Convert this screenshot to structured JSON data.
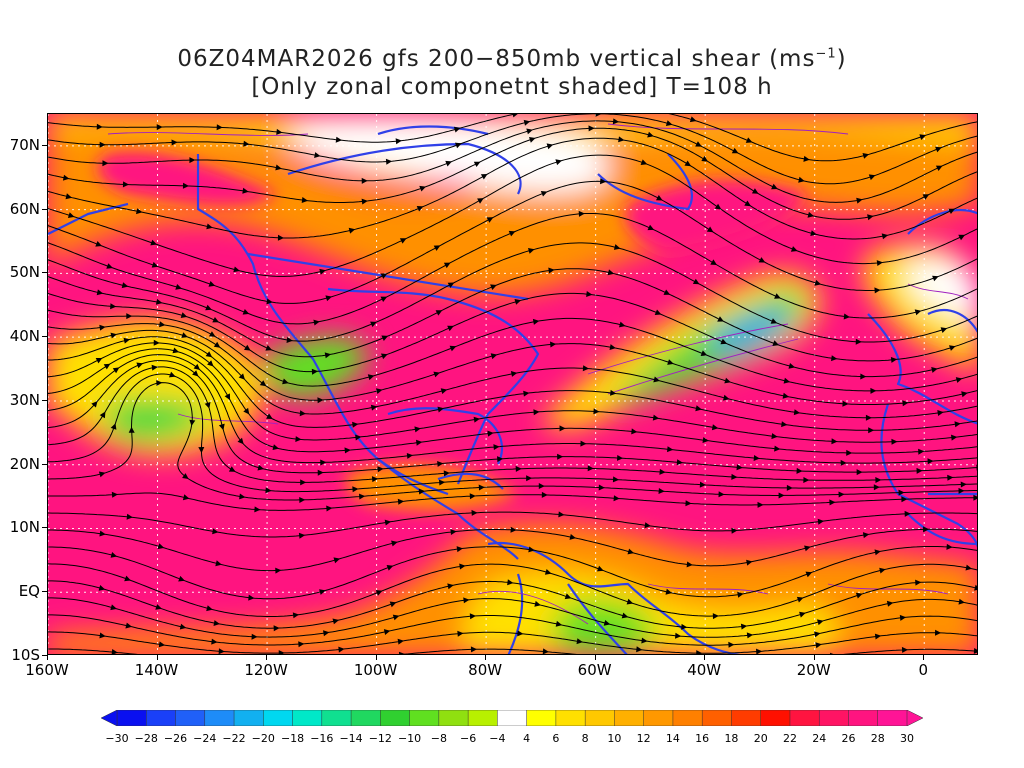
{
  "title_line1_main": "06Z04MAR2026 gfs 200−850mb vertical shear (ms",
  "title_line1_sup": "−1",
  "title_line1_end": ")",
  "title_line2": "[Only zonal componetnt shaded] T=108 h",
  "lat_labels": [
    {
      "text": "70N",
      "lat": 70
    },
    {
      "text": "60N",
      "lat": 60
    },
    {
      "text": "50N",
      "lat": 50
    },
    {
      "text": "40N",
      "lat": 40
    },
    {
      "text": "30N",
      "lat": 30
    },
    {
      "text": "20N",
      "lat": 20
    },
    {
      "text": "10N",
      "lat": 10
    },
    {
      "text": "EQ",
      "lat": 0
    },
    {
      "text": "10S",
      "lat": -10
    }
  ],
  "lon_labels": [
    {
      "text": "160W",
      "lon": -160
    },
    {
      "text": "140W",
      "lon": -140
    },
    {
      "text": "120W",
      "lon": -120
    },
    {
      "text": "100W",
      "lon": -100
    },
    {
      "text": "80W",
      "lon": -80
    },
    {
      "text": "60W",
      "lon": -60
    },
    {
      "text": "40W",
      "lon": -40
    },
    {
      "text": "20W",
      "lon": -20
    },
    {
      "text": "0",
      "lon": 0
    }
  ],
  "map_extent": {
    "lon_min": -160,
    "lon_max": 10,
    "lat_min": -10,
    "lat_max": 75
  },
  "colorbar_labels": [
    "−30",
    "−28",
    "−26",
    "−24",
    "−22",
    "−20",
    "−18",
    "−16",
    "−14",
    "−12",
    "−10",
    "−8",
    "−6",
    "−4",
    "4",
    "6",
    "8",
    "10",
    "12",
    "14",
    "16",
    "18",
    "20",
    "22",
    "24",
    "26",
    "28",
    "30"
  ],
  "colorbar_colors": [
    "#0a10f0",
    "#1a40f8",
    "#2060f8",
    "#1e8cf8",
    "#12b0f0",
    "#00d8f0",
    "#00e8c8",
    "#10e090",
    "#20d860",
    "#30d030",
    "#60e020",
    "#90e010",
    "#b8f000",
    "#ffffff",
    "#ffff00",
    "#ffe000",
    "#ffc800",
    "#ffb000",
    "#ff9800",
    "#ff8000",
    "#ff6000",
    "#ff3c00",
    "#ff1000",
    "#ff1440",
    "#ff1464",
    "#ff1480",
    "#ff1496"
  ],
  "colors": {
    "border": "#3040e8",
    "streamline": "#000000",
    "contour": "#a020c0",
    "grid": "#ffffff"
  }
}
